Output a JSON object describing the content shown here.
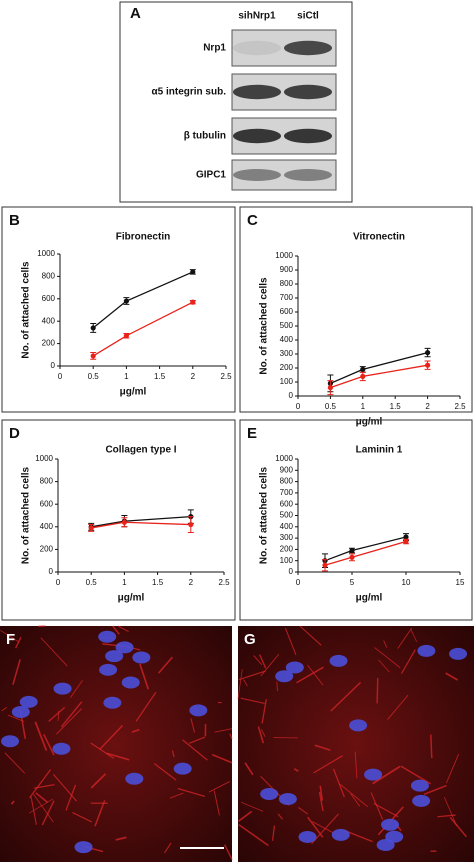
{
  "blot": {
    "panel_label": "A",
    "columns": [
      "sihNrp1",
      "siCtl"
    ],
    "rows": [
      "Nrp1",
      "α5 integrin sub.",
      "β tubulin",
      "GIPC1"
    ]
  },
  "chart_data": [
    {
      "type": "line",
      "panel_label": "B",
      "title": "Fibronectin",
      "ylabel": "No. of attached cells",
      "xlabel": "μg/ml",
      "x": [
        0.5,
        1,
        2
      ],
      "xlim": [
        0,
        2.5
      ],
      "xticks": [
        0,
        0.5,
        1,
        1.5,
        2,
        2.5
      ],
      "ylim": [
        0,
        1000
      ],
      "yticks": [
        0,
        200,
        400,
        600,
        800,
        1000
      ],
      "series": [
        {
          "color": "#111111",
          "values": [
            340,
            580,
            840
          ],
          "errors": [
            40,
            30,
            20
          ]
        },
        {
          "color": "#e8231b",
          "values": [
            90,
            270,
            570
          ],
          "errors": [
            30,
            20,
            15
          ]
        }
      ]
    },
    {
      "type": "line",
      "panel_label": "C",
      "title": "Vitronectin",
      "ylabel": "No. of attached cells",
      "xlabel": "μg/ml",
      "x": [
        0.5,
        1,
        2
      ],
      "xlim": [
        0,
        2.5
      ],
      "xticks": [
        0,
        0.5,
        1,
        1.5,
        2,
        2.5
      ],
      "ylim": [
        0,
        1000
      ],
      "yticks": [
        0,
        100,
        200,
        300,
        400,
        500,
        600,
        700,
        800,
        900,
        1000
      ],
      "series": [
        {
          "color": "#111111",
          "values": [
            90,
            190,
            310
          ],
          "errors": [
            60,
            20,
            30
          ]
        },
        {
          "color": "#e8231b",
          "values": [
            60,
            140,
            220
          ],
          "errors": [
            50,
            30,
            30
          ]
        }
      ]
    },
    {
      "type": "line",
      "panel_label": "D",
      "title": "Collagen type I",
      "ylabel": "No. of attached cells",
      "xlabel": "μg/ml",
      "x": [
        0.5,
        1,
        2
      ],
      "xlim": [
        0,
        2.5
      ],
      "xticks": [
        0,
        0.5,
        1,
        1.5,
        2,
        2.5
      ],
      "ylim": [
        0,
        1000
      ],
      "yticks": [
        0,
        200,
        400,
        600,
        800,
        1000
      ],
      "series": [
        {
          "color": "#111111",
          "values": [
            400,
            450,
            490
          ],
          "errors": [
            30,
            50,
            60
          ]
        },
        {
          "color": "#e8231b",
          "values": [
            390,
            440,
            420
          ],
          "errors": [
            30,
            40,
            70
          ]
        }
      ]
    },
    {
      "type": "line",
      "panel_label": "E",
      "title": "Laminin 1",
      "ylabel": "No. of attached cells",
      "xlabel": "μg/ml",
      "x": [
        2.5,
        5,
        10
      ],
      "xlim": [
        0,
        15
      ],
      "xticks": [
        0,
        5,
        10,
        15
      ],
      "ylim": [
        0,
        1000
      ],
      "yticks": [
        0,
        100,
        200,
        300,
        400,
        500,
        600,
        700,
        800,
        900,
        1000
      ],
      "series": [
        {
          "color": "#111111",
          "values": [
            100,
            190,
            310
          ],
          "errors": [
            60,
            20,
            30
          ]
        },
        {
          "color": "#e8231b",
          "values": [
            60,
            130,
            270
          ],
          "errors": [
            50,
            30,
            20
          ]
        }
      ]
    }
  ],
  "images": [
    {
      "panel_label": "F"
    },
    {
      "panel_label": "G"
    }
  ]
}
